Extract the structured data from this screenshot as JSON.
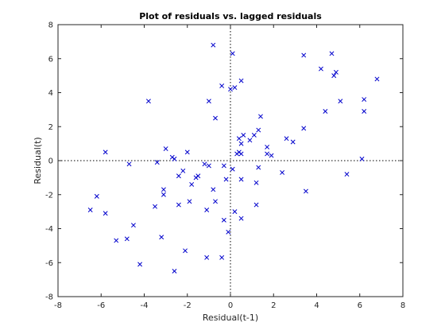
{
  "chart_data": {
    "type": "scatter",
    "title": "Plot of residuals vs. lagged residuals",
    "xlabel": "Residual(t-1)",
    "ylabel": "Residual(t)",
    "xlim": [
      -8,
      8
    ],
    "ylim": [
      -8,
      8
    ],
    "xticks": [
      -8,
      -6,
      -4,
      -2,
      0,
      2,
      4,
      6,
      8
    ],
    "yticks": [
      -8,
      -6,
      -4,
      -2,
      0,
      2,
      4,
      6,
      8
    ],
    "grid": false,
    "reference_lines": {
      "x": 0,
      "y": 0,
      "style": "dotted"
    },
    "marker": "x",
    "marker_color": "#0000cc",
    "series": [
      {
        "points": [
          [
            -0.8,
            6.8
          ],
          [
            0.1,
            6.3
          ],
          [
            -0.4,
            4.4
          ],
          [
            0.2,
            4.3
          ],
          [
            0.5,
            4.7
          ],
          [
            0.0,
            4.2
          ],
          [
            -3.8,
            3.5
          ],
          [
            -1.0,
            3.5
          ],
          [
            3.4,
            6.2
          ],
          [
            4.7,
            6.3
          ],
          [
            4.2,
            5.4
          ],
          [
            4.9,
            5.2
          ],
          [
            4.8,
            5.0
          ],
          [
            6.8,
            4.8
          ],
          [
            5.1,
            3.5
          ],
          [
            6.2,
            3.6
          ],
          [
            6.2,
            2.9
          ],
          [
            4.4,
            2.9
          ],
          [
            -0.7,
            2.5
          ],
          [
            1.4,
            2.6
          ],
          [
            3.4,
            1.9
          ],
          [
            1.3,
            1.8
          ],
          [
            2.6,
            1.3
          ],
          [
            2.9,
            1.1
          ],
          [
            0.6,
            1.5
          ],
          [
            0.4,
            1.3
          ],
          [
            0.9,
            1.2
          ],
          [
            1.1,
            1.5
          ],
          [
            0.5,
            1.0
          ],
          [
            -3.0,
            0.7
          ],
          [
            1.7,
            0.8
          ],
          [
            1.7,
            0.4
          ],
          [
            1.9,
            0.3
          ],
          [
            0.4,
            0.5
          ],
          [
            0.3,
            0.4
          ],
          [
            0.5,
            0.4
          ],
          [
            -2.0,
            0.5
          ],
          [
            -2.7,
            0.2
          ],
          [
            -2.6,
            0.1
          ],
          [
            -5.8,
            0.5
          ],
          [
            -3.4,
            -0.1
          ],
          [
            -4.7,
            -0.2
          ],
          [
            -1.2,
            -0.2
          ],
          [
            6.1,
            0.1
          ],
          [
            -1.0,
            -0.3
          ],
          [
            -0.3,
            -0.3
          ],
          [
            0.1,
            -0.5
          ],
          [
            1.3,
            -0.4
          ],
          [
            -2.2,
            -0.6
          ],
          [
            -1.5,
            -0.9
          ],
          [
            -2.4,
            -0.9
          ],
          [
            2.4,
            -0.7
          ],
          [
            5.4,
            -0.8
          ],
          [
            -1.6,
            -1.0
          ],
          [
            0.5,
            -1.1
          ],
          [
            -0.2,
            -1.1
          ],
          [
            1.2,
            -1.3
          ],
          [
            -1.8,
            -1.4
          ],
          [
            -3.1,
            -1.7
          ],
          [
            -0.8,
            -1.7
          ],
          [
            -3.1,
            -2.0
          ],
          [
            3.5,
            -1.8
          ],
          [
            -6.2,
            -2.1
          ],
          [
            -1.9,
            -2.4
          ],
          [
            -0.7,
            -2.4
          ],
          [
            -2.4,
            -2.6
          ],
          [
            -3.5,
            -2.7
          ],
          [
            1.2,
            -2.6
          ],
          [
            -1.1,
            -2.9
          ],
          [
            -6.5,
            -2.9
          ],
          [
            -5.8,
            -3.1
          ],
          [
            0.2,
            -3.0
          ],
          [
            0.5,
            -3.4
          ],
          [
            -0.3,
            -3.5
          ],
          [
            -4.5,
            -3.8
          ],
          [
            -0.1,
            -4.2
          ],
          [
            -3.2,
            -4.5
          ],
          [
            -5.3,
            -4.7
          ],
          [
            -4.8,
            -4.6
          ],
          [
            -2.1,
            -5.3
          ],
          [
            -1.1,
            -5.7
          ],
          [
            -0.4,
            -5.7
          ],
          [
            -4.2,
            -6.1
          ],
          [
            -2.6,
            -6.5
          ]
        ]
      }
    ]
  }
}
